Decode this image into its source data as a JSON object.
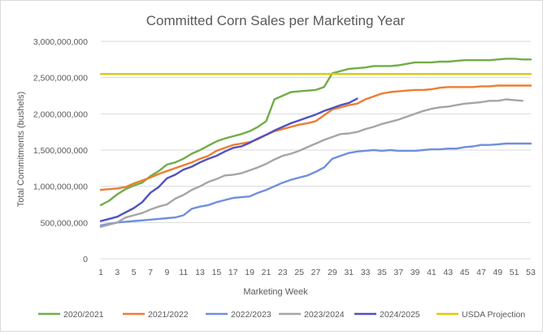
{
  "chart_data": {
    "type": "line",
    "title": "Committed Corn Sales per Marketing Year",
    "xlabel": "Marketing Week",
    "ylabel": "Total Commitments (bushels)",
    "ylim": [
      0,
      3000000000
    ],
    "xlim": [
      1,
      53
    ],
    "yticks": [
      "0",
      "500,000,000",
      "1,000,000,000",
      "1,500,000,000",
      "2,000,000,000",
      "2,500,000,000",
      "3,000,000,000"
    ],
    "xticks": [
      "1",
      "3",
      "5",
      "7",
      "9",
      "11",
      "13",
      "15",
      "17",
      "19",
      "21",
      "23",
      "25",
      "27",
      "29",
      "31",
      "33",
      "35",
      "37",
      "39",
      "41",
      "43",
      "45",
      "47",
      "49",
      "51",
      "53"
    ],
    "grid": "horizontal",
    "legend_position": "bottom",
    "series": [
      {
        "name": "2020/2021",
        "color": "#70ad47",
        "x": [
          1,
          2,
          3,
          4,
          5,
          6,
          7,
          8,
          9,
          10,
          11,
          12,
          13,
          14,
          15,
          16,
          17,
          18,
          19,
          20,
          21,
          22,
          23,
          24,
          25,
          26,
          27,
          28,
          29,
          30,
          31,
          32,
          33,
          34,
          35,
          36,
          37,
          38,
          39,
          40,
          41,
          42,
          43,
          44,
          45,
          46,
          47,
          48,
          49,
          50,
          51,
          52,
          53
        ],
        "values": [
          740000000,
          800000000,
          890000000,
          960000000,
          1010000000,
          1050000000,
          1140000000,
          1210000000,
          1300000000,
          1330000000,
          1380000000,
          1450000000,
          1500000000,
          1560000000,
          1620000000,
          1660000000,
          1690000000,
          1720000000,
          1760000000,
          1820000000,
          1900000000,
          2200000000,
          2250000000,
          2300000000,
          2310000000,
          2320000000,
          2330000000,
          2370000000,
          2560000000,
          2590000000,
          2620000000,
          2630000000,
          2640000000,
          2660000000,
          2660000000,
          2660000000,
          2670000000,
          2690000000,
          2710000000,
          2710000000,
          2710000000,
          2720000000,
          2720000000,
          2730000000,
          2740000000,
          2740000000,
          2740000000,
          2740000000,
          2750000000,
          2760000000,
          2760000000,
          2750000000,
          2750000000
        ]
      },
      {
        "name": "2021/2022",
        "color": "#ed7d31",
        "x": [
          1,
          2,
          3,
          4,
          5,
          6,
          7,
          8,
          9,
          10,
          11,
          12,
          13,
          14,
          15,
          16,
          17,
          18,
          19,
          20,
          21,
          22,
          23,
          24,
          25,
          26,
          27,
          28,
          29,
          30,
          31,
          32,
          33,
          34,
          35,
          36,
          37,
          38,
          39,
          40,
          41,
          42,
          43,
          44,
          45,
          46,
          47,
          48,
          49,
          50,
          51,
          52,
          53
        ],
        "values": [
          950000000,
          960000000,
          970000000,
          990000000,
          1040000000,
          1080000000,
          1120000000,
          1170000000,
          1210000000,
          1250000000,
          1290000000,
          1330000000,
          1380000000,
          1420000000,
          1490000000,
          1530000000,
          1570000000,
          1590000000,
          1610000000,
          1650000000,
          1710000000,
          1760000000,
          1790000000,
          1820000000,
          1850000000,
          1870000000,
          1900000000,
          1980000000,
          2060000000,
          2090000000,
          2120000000,
          2140000000,
          2200000000,
          2240000000,
          2280000000,
          2300000000,
          2310000000,
          2320000000,
          2330000000,
          2330000000,
          2340000000,
          2360000000,
          2370000000,
          2370000000,
          2370000000,
          2370000000,
          2380000000,
          2380000000,
          2390000000,
          2390000000,
          2390000000,
          2390000000,
          2390000000
        ]
      },
      {
        "name": "2022/2023",
        "color": "#6f8fdc",
        "x": [
          1,
          2,
          3,
          4,
          5,
          6,
          7,
          8,
          9,
          10,
          11,
          12,
          13,
          14,
          15,
          16,
          17,
          18,
          19,
          20,
          21,
          22,
          23,
          24,
          25,
          26,
          27,
          28,
          29,
          30,
          31,
          32,
          33,
          34,
          35,
          36,
          37,
          38,
          39,
          40,
          41,
          42,
          43,
          44,
          45,
          46,
          47,
          48,
          49,
          50,
          51,
          52,
          53
        ],
        "values": [
          460000000,
          480000000,
          500000000,
          510000000,
          520000000,
          530000000,
          540000000,
          550000000,
          560000000,
          570000000,
          600000000,
          690000000,
          720000000,
          740000000,
          780000000,
          810000000,
          840000000,
          850000000,
          860000000,
          910000000,
          950000000,
          1000000000,
          1050000000,
          1090000000,
          1120000000,
          1150000000,
          1200000000,
          1260000000,
          1380000000,
          1420000000,
          1460000000,
          1480000000,
          1490000000,
          1500000000,
          1490000000,
          1500000000,
          1490000000,
          1490000000,
          1490000000,
          1500000000,
          1510000000,
          1510000000,
          1520000000,
          1520000000,
          1540000000,
          1550000000,
          1570000000,
          1570000000,
          1580000000,
          1590000000,
          1590000000,
          1590000000,
          1590000000
        ]
      },
      {
        "name": "2023/2024",
        "color": "#a5a5a5",
        "x": [
          1,
          2,
          3,
          4,
          5,
          6,
          7,
          8,
          9,
          10,
          11,
          12,
          13,
          14,
          15,
          16,
          17,
          18,
          19,
          20,
          21,
          22,
          23,
          24,
          25,
          26,
          27,
          28,
          29,
          30,
          31,
          32,
          33,
          34,
          35,
          36,
          37,
          38,
          39,
          40,
          41,
          42,
          43,
          44,
          45,
          46,
          47,
          48,
          49,
          50,
          51,
          52
        ],
        "values": [
          440000000,
          470000000,
          500000000,
          570000000,
          600000000,
          630000000,
          680000000,
          720000000,
          750000000,
          830000000,
          880000000,
          950000000,
          1000000000,
          1060000000,
          1100000000,
          1150000000,
          1160000000,
          1180000000,
          1220000000,
          1260000000,
          1310000000,
          1370000000,
          1420000000,
          1450000000,
          1490000000,
          1540000000,
          1590000000,
          1640000000,
          1680000000,
          1720000000,
          1730000000,
          1750000000,
          1790000000,
          1820000000,
          1860000000,
          1890000000,
          1920000000,
          1960000000,
          2000000000,
          2040000000,
          2070000000,
          2090000000,
          2100000000,
          2120000000,
          2140000000,
          2150000000,
          2160000000,
          2180000000,
          2180000000,
          2200000000,
          2190000000,
          2180000000
        ]
      },
      {
        "name": "2024/2025",
        "color": "#4f51c2",
        "x": [
          1,
          2,
          3,
          4,
          5,
          6,
          7,
          8,
          9,
          10,
          11,
          12,
          13,
          14,
          15,
          16,
          17,
          18,
          19,
          20,
          21,
          22,
          23,
          24,
          25,
          26,
          27,
          28,
          29,
          30,
          31,
          32
        ],
        "values": [
          520000000,
          550000000,
          580000000,
          640000000,
          700000000,
          780000000,
          910000000,
          990000000,
          1110000000,
          1160000000,
          1230000000,
          1270000000,
          1330000000,
          1380000000,
          1420000000,
          1480000000,
          1530000000,
          1550000000,
          1600000000,
          1660000000,
          1710000000,
          1770000000,
          1820000000,
          1870000000,
          1910000000,
          1950000000,
          1990000000,
          2040000000,
          2080000000,
          2120000000,
          2150000000,
          2210000000
        ]
      },
      {
        "name": "USDA Projection",
        "color": "#e3c800",
        "x": [
          1,
          53
        ],
        "values": [
          2550000000,
          2550000000
        ]
      }
    ]
  }
}
